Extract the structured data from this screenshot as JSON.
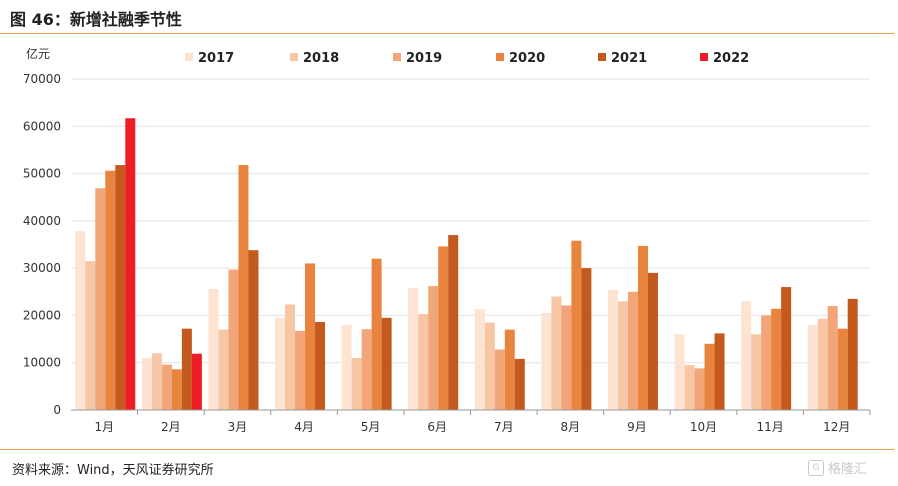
{
  "header": {
    "title": "图 46：新增社融季节性"
  },
  "footer": {
    "source": "资料来源：Wind，天风证券研究所",
    "watermark": "格隆汇"
  },
  "chart_data": {
    "type": "bar",
    "ylabel": "亿元",
    "ylim": [
      0,
      70000
    ],
    "yticks": [
      0,
      10000,
      20000,
      30000,
      40000,
      50000,
      60000,
      70000
    ],
    "grid": true,
    "legend_position": "top",
    "categories": [
      "1月",
      "2月",
      "3月",
      "4月",
      "5月",
      "6月",
      "7月",
      "8月",
      "9月",
      "10月",
      "11月",
      "12月"
    ],
    "series": [
      {
        "name": "2017",
        "color": "#fce3d2",
        "values": [
          37800,
          11000,
          25600,
          19500,
          18000,
          25800,
          21300,
          20500,
          25400,
          16000,
          23000,
          18000
        ]
      },
      {
        "name": "2018",
        "color": "#f7c7a5",
        "values": [
          31500,
          12000,
          17000,
          22300,
          11000,
          20300,
          18500,
          24000,
          23000,
          9500,
          16000,
          19300
        ]
      },
      {
        "name": "2019",
        "color": "#f2a578",
        "values": [
          46900,
          9600,
          29700,
          16700,
          17100,
          26200,
          12800,
          22100,
          25000,
          8800,
          20000,
          22000
        ]
      },
      {
        "name": "2020",
        "color": "#e9843f",
        "values": [
          50600,
          8600,
          51800,
          31000,
          32000,
          34600,
          17000,
          35800,
          34700,
          14000,
          21400,
          17200
        ]
      },
      {
        "name": "2021",
        "color": "#c4591e",
        "values": [
          51800,
          17200,
          33800,
          18600,
          19500,
          37000,
          10800,
          30000,
          29000,
          16200,
          26000,
          23500
        ]
      },
      {
        "name": "2022",
        "color": "#ee1c25",
        "values": [
          61700,
          11900,
          null,
          null,
          null,
          null,
          null,
          null,
          null,
          null,
          null,
          null
        ]
      }
    ]
  }
}
